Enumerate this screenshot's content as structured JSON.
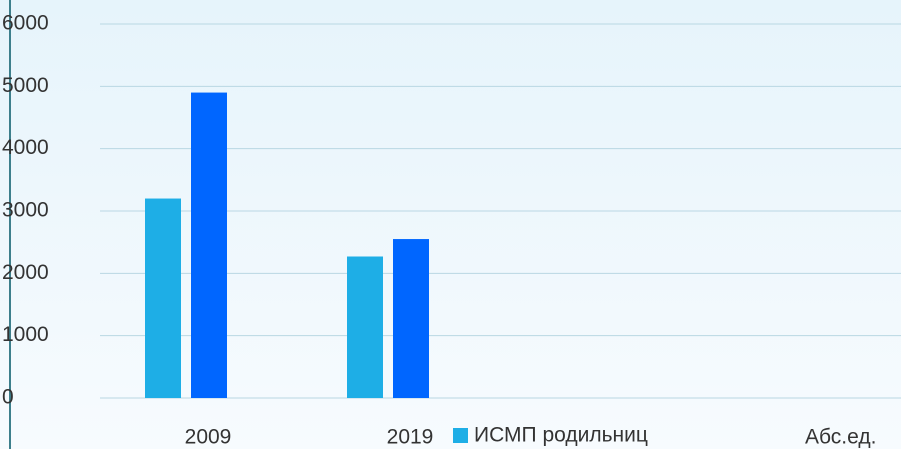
{
  "chart_data": {
    "type": "bar",
    "categories": [
      "2009",
      "2019"
    ],
    "series": [
      {
        "name": "ИСМП родильниц",
        "color": "#1eaee6",
        "values": [
          3200,
          2270
        ]
      },
      {
        "color": "#0066ff",
        "values": [
          4900,
          2550
        ]
      }
    ],
    "ylim": [
      0,
      6000
    ],
    "yticks": [
      0,
      1000,
      2000,
      3000,
      4000,
      5000,
      6000
    ],
    "grid": true,
    "annotation": "Абс.ед."
  }
}
